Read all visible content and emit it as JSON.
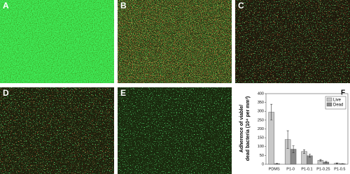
{
  "panels": [
    {
      "label": "A"
    },
    {
      "label": "B"
    },
    {
      "label": "C"
    },
    {
      "label": "D"
    },
    {
      "label": "E"
    }
  ],
  "chart_data": {
    "type": "bar",
    "label": "F",
    "ylabel": [
      "Adherence of viable/",
      "dead bacteria (10⁴ per mm²)"
    ],
    "categories": [
      "PDMS",
      "P1-0",
      "P1-0.1",
      "P1-0.25",
      "P1-0.5"
    ],
    "series": [
      {
        "name": "Live",
        "color": "#c8c8c8",
        "values": [
          295,
          140,
          72,
          22,
          5
        ],
        "errors": [
          45,
          50,
          10,
          5,
          2
        ]
      },
      {
        "name": "Dead",
        "color": "#8a8a8a",
        "values": [
          3,
          85,
          48,
          12,
          3
        ],
        "errors": [
          2,
          20,
          8,
          4,
          1
        ]
      }
    ],
    "ylim": [
      0,
      400
    ],
    "yticks": [
      0,
      50,
      100,
      150,
      200,
      250,
      300,
      350,
      400
    ],
    "legend": "upper right"
  }
}
